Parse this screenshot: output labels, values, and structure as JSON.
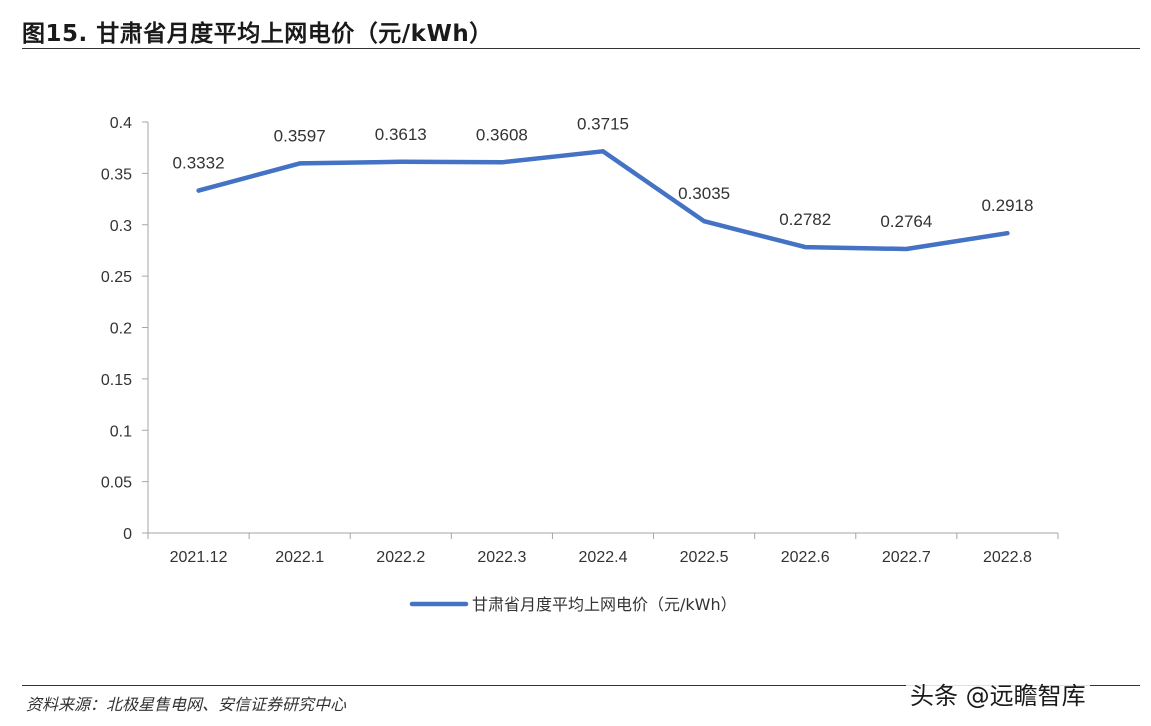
{
  "figure": {
    "title": "图15. 甘肃省月度平均上网电价（元/kWh）"
  },
  "chart_data": {
    "type": "line",
    "categories": [
      "2021.12",
      "2022.1",
      "2022.2",
      "2022.3",
      "2022.4",
      "2022.5",
      "2022.6",
      "2022.7",
      "2022.8"
    ],
    "series": [
      {
        "name": "甘肃省月度平均上网电价（元/kWh）",
        "values": [
          0.3332,
          0.3597,
          0.3613,
          0.3608,
          0.3715,
          0.3035,
          0.2782,
          0.2764,
          0.2918
        ],
        "data_labels": [
          "0.3332",
          "0.3597",
          "0.3613",
          "0.3608",
          "0.3715",
          "0.3035",
          "0.2782",
          "0.2764",
          "0.2918"
        ]
      }
    ],
    "ylim": [
      0,
      0.4
    ],
    "yticks": [
      0,
      0.05,
      0.1,
      0.15,
      0.2,
      0.25,
      0.3,
      0.35,
      0.4
    ],
    "ytick_labels": [
      "0",
      "0.05",
      "0.1",
      "0.15",
      "0.2",
      "0.25",
      "0.3",
      "0.35",
      "0.4"
    ],
    "grid": false,
    "legend_position": "bottom-center",
    "line_color": "#4472C4"
  },
  "footer": {
    "source": "资料来源：北极星售电网、安信证券研究中心",
    "watermark": "头条 @远瞻智库"
  }
}
